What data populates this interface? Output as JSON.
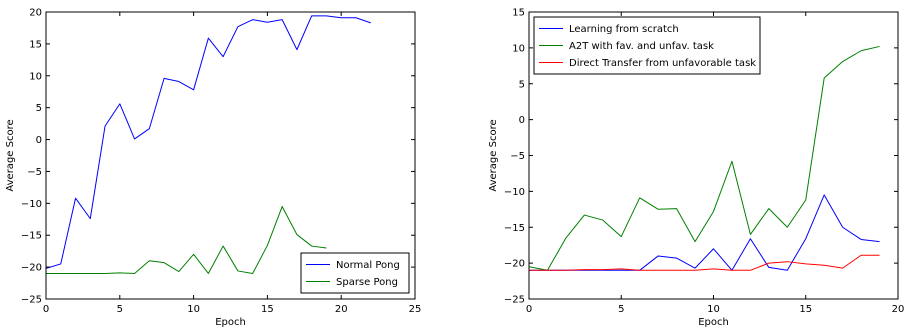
{
  "chart_data": [
    {
      "type": "line",
      "title": "",
      "xlabel": "Epoch",
      "ylabel": "Average Score",
      "xlim": [
        0,
        25
      ],
      "ylim": [
        -25,
        20
      ],
      "xticks": [
        0,
        5,
        10,
        15,
        20,
        25
      ],
      "yticks": [
        -25,
        -20,
        -15,
        -10,
        -5,
        0,
        5,
        10,
        15,
        20
      ],
      "grid": false,
      "legend_position": "lower-right",
      "series": [
        {
          "name": "Normal Pong",
          "color": "#0000ff",
          "x": [
            0,
            1,
            2,
            3,
            4,
            5,
            6,
            7,
            8,
            9,
            10,
            11,
            12,
            13,
            14,
            15,
            16,
            17,
            18,
            19,
            20,
            21,
            22
          ],
          "values": [
            -20.2,
            -19.5,
            -9.2,
            -12.4,
            2.1,
            5.6,
            0.1,
            1.7,
            9.6,
            9.1,
            7.8,
            15.9,
            13.0,
            17.7,
            18.8,
            18.4,
            18.8,
            14.1,
            19.4,
            19.4,
            19.1,
            19.1,
            18.3
          ]
        },
        {
          "name": "Sparse Pong",
          "color": "#008000",
          "x": [
            0,
            1,
            2,
            3,
            4,
            5,
            6,
            7,
            8,
            9,
            10,
            11,
            12,
            13,
            14,
            15,
            16,
            17,
            18,
            19
          ],
          "values": [
            -21,
            -21,
            -21,
            -21,
            -21,
            -20.9,
            -21,
            -19.0,
            -19.3,
            -20.7,
            -18.0,
            -21.0,
            -16.7,
            -20.6,
            -21.0,
            -16.6,
            -10.5,
            -14.9,
            -16.7,
            -17.0
          ]
        }
      ]
    },
    {
      "type": "line",
      "title": "",
      "xlabel": "Epoch",
      "ylabel": "Average Score",
      "xlim": [
        0,
        20
      ],
      "ylim": [
        -25,
        15
      ],
      "xticks": [
        0,
        5,
        10,
        15,
        20
      ],
      "yticks": [
        -25,
        -20,
        -15,
        -10,
        -5,
        0,
        5,
        10,
        15
      ],
      "grid": false,
      "legend_position": "top-left",
      "series": [
        {
          "name": "Learning from scratch",
          "color": "#0000ff",
          "x": [
            0,
            1,
            2,
            3,
            4,
            5,
            6,
            7,
            8,
            9,
            10,
            11,
            12,
            13,
            14,
            15,
            16,
            17,
            18,
            19
          ],
          "values": [
            -21,
            -21,
            -21,
            -21,
            -21,
            -21,
            -21,
            -19.0,
            -19.3,
            -20.7,
            -18.0,
            -21.0,
            -16.6,
            -20.6,
            -21.0,
            -16.6,
            -10.5,
            -15.0,
            -16.7,
            -17.0
          ]
        },
        {
          "name": "A2T with fav. and unfav. task",
          "color": "#008000",
          "x": [
            0,
            1,
            2,
            3,
            4,
            5,
            6,
            7,
            8,
            9,
            10,
            11,
            12,
            13,
            14,
            15,
            16,
            17,
            18,
            19
          ],
          "values": [
            -20.5,
            -21.0,
            -16.5,
            -13.3,
            -14.0,
            -16.3,
            -10.9,
            -12.5,
            -12.4,
            -17.0,
            -12.8,
            -5.8,
            -16.0,
            -12.4,
            -15.0,
            -11.2,
            5.8,
            8.1,
            9.6,
            10.2
          ]
        },
        {
          "name": "Direct Transfer from unfavorable task",
          "color": "#ff0000",
          "x": [
            0,
            1,
            2,
            3,
            4,
            5,
            6,
            7,
            8,
            9,
            10,
            11,
            12,
            13,
            14,
            15,
            16,
            17,
            18,
            19
          ],
          "values": [
            -21.0,
            -21.0,
            -21.0,
            -20.9,
            -20.9,
            -20.8,
            -21.0,
            -21.0,
            -21.0,
            -21.0,
            -20.8,
            -21.0,
            -21.0,
            -20.0,
            -19.8,
            -20.1,
            -20.3,
            -20.7,
            -18.9,
            -18.9
          ]
        }
      ]
    }
  ]
}
